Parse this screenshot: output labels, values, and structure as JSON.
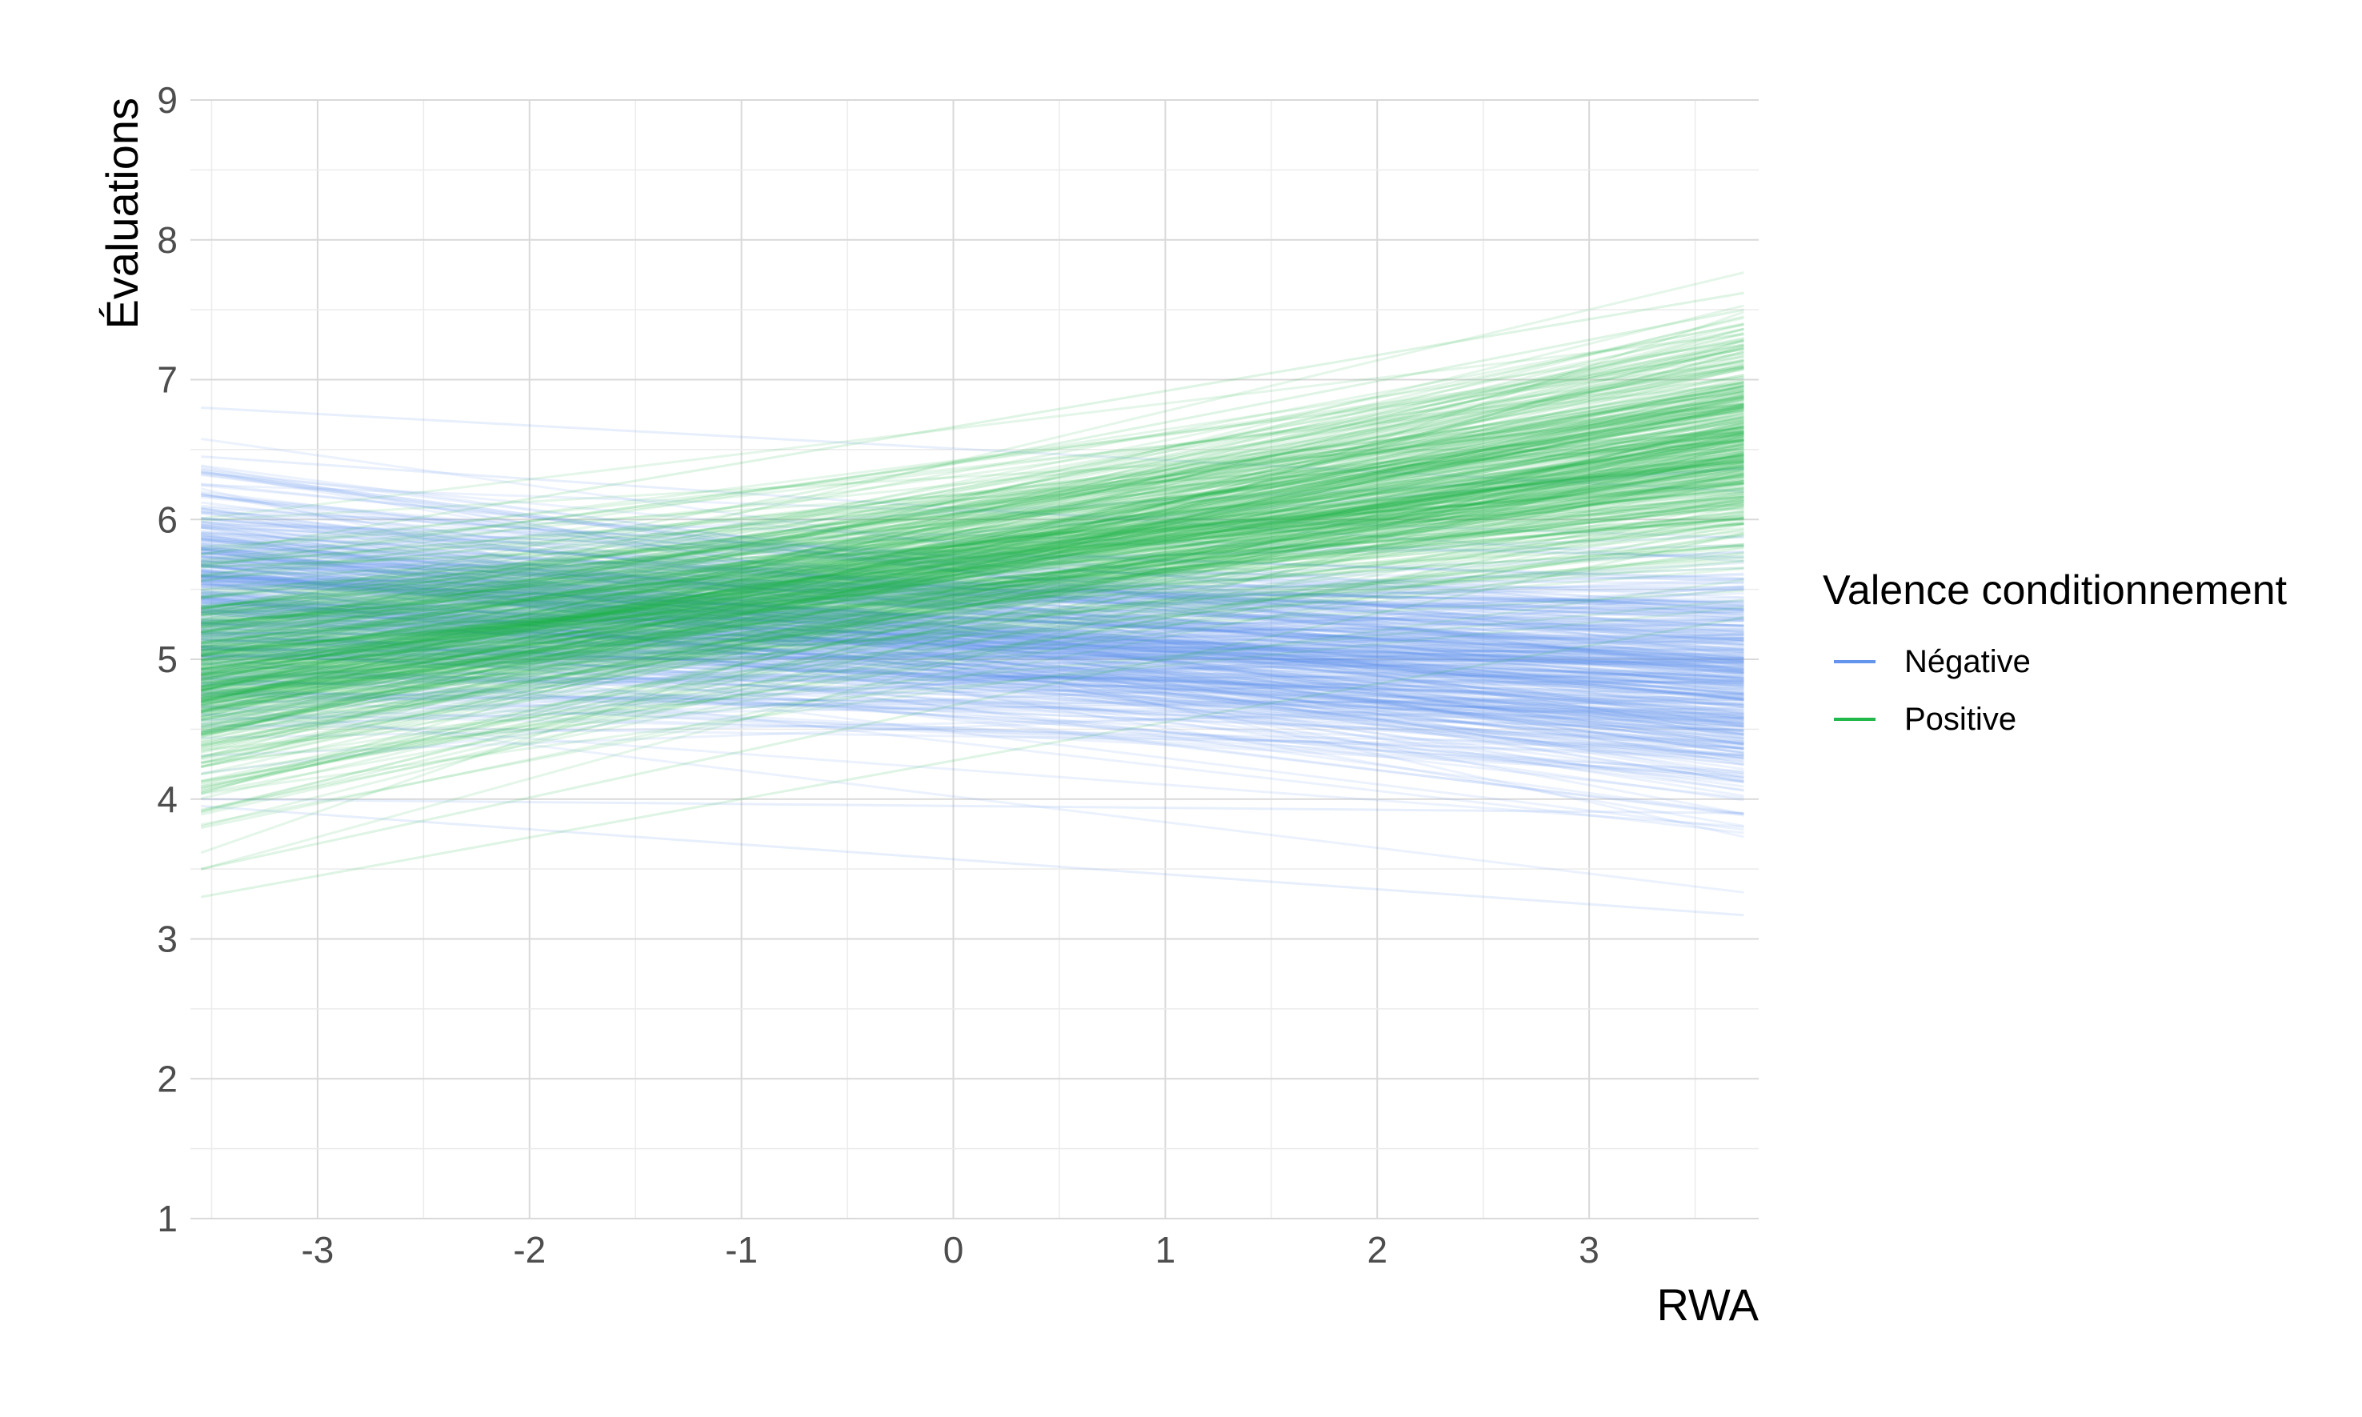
{
  "chart_data": {
    "type": "line",
    "title": "",
    "xlabel": "RWA",
    "ylabel": "Évaluations",
    "xlim": [
      -3.6,
      3.8
    ],
    "ylim": [
      1,
      9
    ],
    "x_ticks": [
      "-3",
      "-2",
      "-1",
      "0",
      "1",
      "2",
      "3"
    ],
    "y_ticks": [
      "1",
      "2",
      "3",
      "4",
      "5",
      "6",
      "7",
      "8",
      "9"
    ],
    "grid": true,
    "legend": {
      "title": "Valence conditionnement",
      "position": "right",
      "entries": [
        {
          "label": "Négative",
          "color": "#6495ed"
        },
        {
          "label": "Positive",
          "color": "#22b84c"
        }
      ]
    },
    "x_range_lines": [
      -3.55,
      3.73
    ],
    "series": [
      {
        "name": "Négative",
        "color": "#6495ed",
        "description": "Posterior draws of the regression line (many semi-transparent lines)",
        "draws": 400,
        "mean_at_x_min": 5.45,
        "mean_at_x_max": 4.85,
        "spread_at_x_min": 0.42,
        "spread_at_x_max": 0.45,
        "examples": [
          [
            6.8,
            6.2
          ],
          [
            6.45,
            5.7
          ],
          [
            4.0,
            3.9
          ],
          [
            3.95,
            3.17
          ],
          [
            5.9,
            5.3
          ]
        ]
      },
      {
        "name": "Positive",
        "color": "#22b84c",
        "description": "Posterior draws of the regression line (many semi-transparent lines)",
        "draws": 400,
        "mean_at_x_min": 4.85,
        "mean_at_x_max": 6.55,
        "spread_at_x_min": 0.4,
        "spread_at_x_max": 0.42,
        "examples": [
          [
            3.3,
            5.3
          ],
          [
            3.5,
            5.9
          ],
          [
            5.75,
            7.62
          ],
          [
            4.3,
            7.2
          ],
          [
            5.35,
            7.5
          ]
        ]
      }
    ]
  }
}
